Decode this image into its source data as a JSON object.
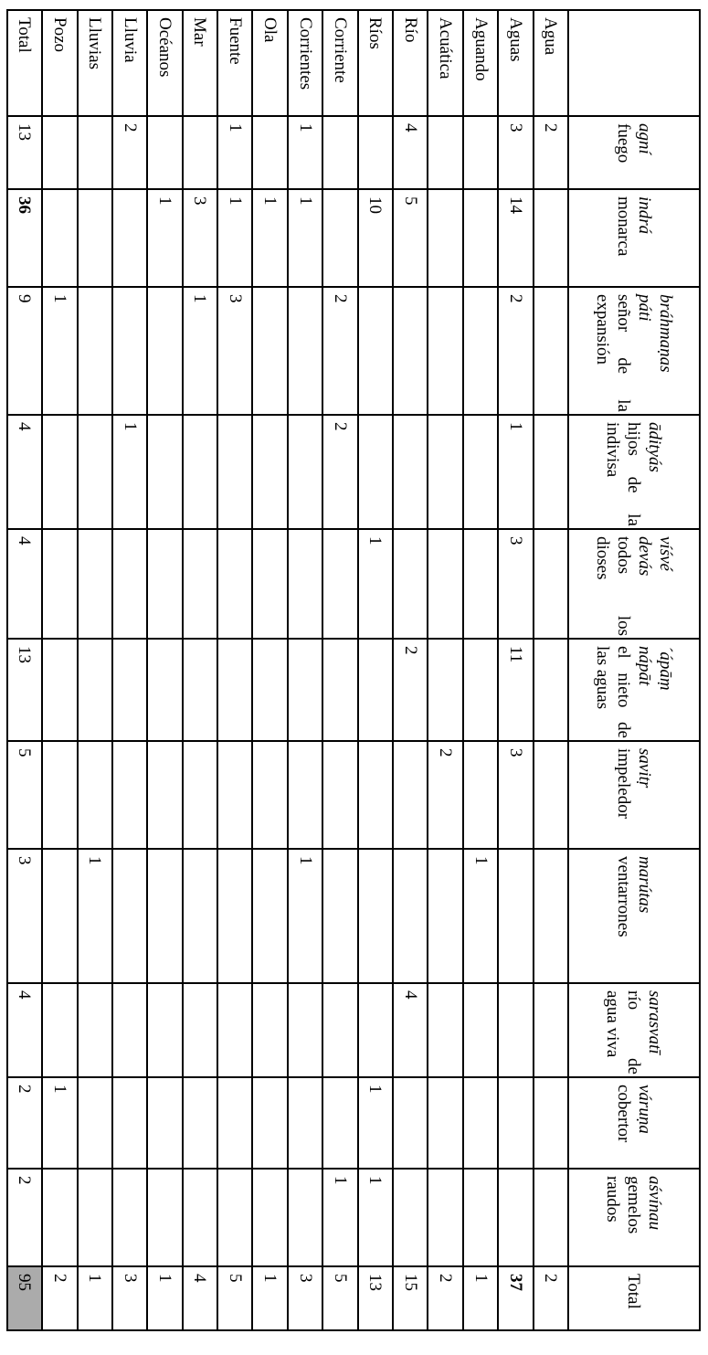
{
  "colors": {
    "grid": "#000000",
    "text": "#000000",
    "page_bg": "#ffffff",
    "grand_total_bg": "#ababab"
  },
  "table": {
    "corner_label": "",
    "total_column_label": "Total",
    "columns": [
      {
        "name_lines": [
          "agní"
        ],
        "gloss_lines": [
          "fuego"
        ]
      },
      {
        "name_lines": [
          "indrá"
        ],
        "gloss_lines": [
          "monarca"
        ]
      },
      {
        "name_lines": [
          "bráhmaṇas",
          "páti"
        ],
        "gloss_lines": [
          "señor de la",
          "expansión"
        ]
      },
      {
        "name_lines": [
          "ādityás"
        ],
        "gloss_lines": [
          "hijos de la",
          "indivisa"
        ]
      },
      {
        "name_lines": [
          "víśvé",
          "devás"
        ],
        "gloss_lines": [
          "todos los",
          "dioses"
        ]
      },
      {
        "name_lines": [
          "´ápāṃ",
          "nápāt"
        ],
        "gloss_lines": [
          "el nieto de",
          "las aguas"
        ]
      },
      {
        "name_lines": [
          "savitṛ"
        ],
        "gloss_lines": [
          "impeledor"
        ]
      },
      {
        "name_lines": [
          "marútas"
        ],
        "gloss_lines": [
          "ventarrones"
        ]
      },
      {
        "name_lines": [
          "sarasvatī"
        ],
        "gloss_lines": [
          "río de",
          "agua viva"
        ]
      },
      {
        "name_lines": [
          "váruṇa"
        ],
        "gloss_lines": [
          "cobertor"
        ]
      },
      {
        "name_lines": [
          "aśvínau"
        ],
        "gloss_lines": [
          "gemelos",
          "raudos"
        ]
      }
    ],
    "rows": [
      {
        "label": "Agua",
        "values": [
          "2",
          "",
          "",
          "",
          "",
          "",
          "",
          "",
          "",
          "",
          ""
        ],
        "total": "2",
        "total_bold": false
      },
      {
        "label": "Aguas",
        "values": [
          "3",
          "14",
          "2",
          "1",
          "3",
          "11",
          "3",
          "",
          "",
          "",
          ""
        ],
        "total": "37",
        "total_bold": true
      },
      {
        "label": "Aguando",
        "values": [
          "",
          "",
          "",
          "",
          "",
          "",
          "",
          "1",
          "",
          "",
          ""
        ],
        "total": "1",
        "total_bold": false
      },
      {
        "label": "Acuática",
        "values": [
          "",
          "",
          "",
          "",
          "",
          "",
          "2",
          "",
          "",
          "",
          ""
        ],
        "total": "2",
        "total_bold": false
      },
      {
        "label": "Río",
        "values": [
          "4",
          "5",
          "",
          "",
          "",
          "2",
          "",
          "",
          "4",
          "",
          ""
        ],
        "total": "15",
        "total_bold": false
      },
      {
        "label": "Ríos",
        "values": [
          "",
          "10",
          "",
          "",
          "1",
          "",
          "",
          "",
          "",
          "1",
          "1"
        ],
        "total": "13",
        "total_bold": false
      },
      {
        "label": "Corriente",
        "values": [
          "",
          "",
          "2",
          "2",
          "",
          "",
          "",
          "",
          "",
          "",
          "1"
        ],
        "total": "5",
        "total_bold": false
      },
      {
        "label": "Corrientes",
        "values": [
          "1",
          "1",
          "",
          "",
          "",
          "",
          "",
          "1",
          "",
          "",
          ""
        ],
        "total": "3",
        "total_bold": false
      },
      {
        "label": "Ola",
        "values": [
          "",
          "1",
          "",
          "",
          "",
          "",
          "",
          "",
          "",
          "",
          ""
        ],
        "total": "1",
        "total_bold": false
      },
      {
        "label": "Fuente",
        "values": [
          "1",
          "1",
          "3",
          "",
          "",
          "",
          "",
          "",
          "",
          "",
          ""
        ],
        "total": "5",
        "total_bold": false
      },
      {
        "label": "Mar",
        "values": [
          "",
          "3",
          "1",
          "",
          "",
          "",
          "",
          "",
          "",
          "",
          ""
        ],
        "total": "4",
        "total_bold": false
      },
      {
        "label": "Océanos",
        "values": [
          "",
          "1",
          "",
          "",
          "",
          "",
          "",
          "",
          "",
          "",
          ""
        ],
        "total": "1",
        "total_bold": false
      },
      {
        "label": "Lluvia",
        "values": [
          "2",
          "",
          "",
          "1",
          "",
          "",
          "",
          "",
          "",
          "",
          ""
        ],
        "total": "3",
        "total_bold": false
      },
      {
        "label": "Lluvias",
        "values": [
          "",
          "",
          "",
          "",
          "",
          "",
          "",
          "1",
          "",
          "",
          ""
        ],
        "total": "1",
        "total_bold": false
      },
      {
        "label": "Pozo",
        "values": [
          "",
          "",
          "1",
          "",
          "",
          "",
          "",
          "",
          "",
          "1",
          ""
        ],
        "total": "2",
        "total_bold": false
      }
    ],
    "totals_row": {
      "label": "Total",
      "values": [
        "13",
        "36",
        "9",
        "4",
        "4",
        "13",
        "5",
        "3",
        "4",
        "2",
        "2"
      ],
      "bold_value_indexes": [
        1
      ],
      "grand_total": "95",
      "grand_total_gray": true
    }
  }
}
